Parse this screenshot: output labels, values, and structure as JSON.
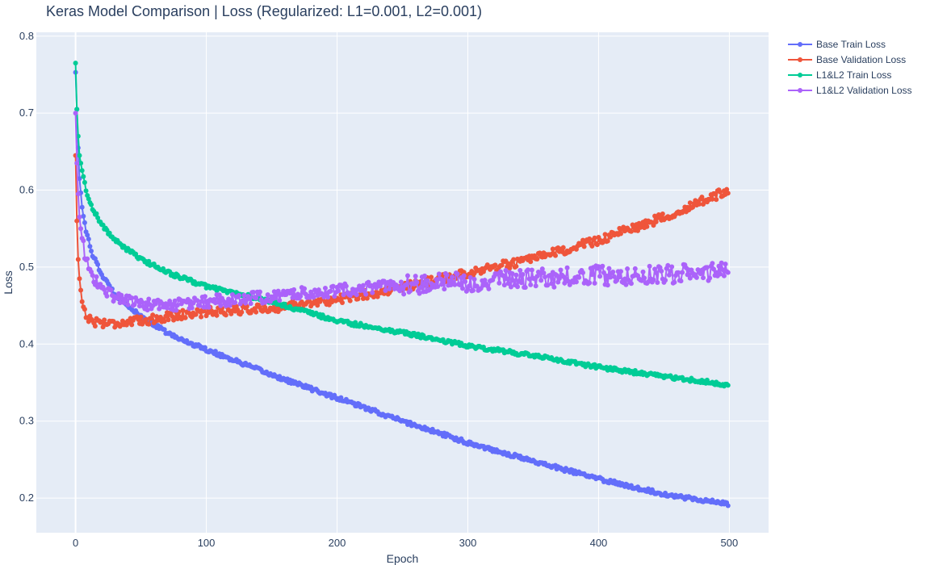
{
  "chart_data": {
    "type": "line",
    "title": "Keras Model Comparison |  Loss (Regularized: L1=0.001, L2=0.001)",
    "xlabel": "Epoch",
    "ylabel": "Loss",
    "xlim": [
      -30,
      530
    ],
    "ylim": [
      0.155,
      0.805
    ],
    "x_ticks": [
      0,
      100,
      200,
      300,
      400,
      500
    ],
    "y_ticks": [
      0.2,
      0.3,
      0.4,
      0.5,
      0.6,
      0.7,
      0.8
    ],
    "grid": true,
    "legend_position": "top-right",
    "colors": {
      "plot_bg": "#E5ECF6",
      "grid": "#ffffff",
      "text": "#2a3f5f"
    },
    "series": [
      {
        "name": "Base Train Loss",
        "color": "#636EFA",
        "keypoints": [
          [
            0,
            0.753
          ],
          [
            1,
            0.705
          ],
          [
            2,
            0.655
          ],
          [
            3,
            0.615
          ],
          [
            5,
            0.578
          ],
          [
            8,
            0.548
          ],
          [
            12,
            0.52
          ],
          [
            20,
            0.49
          ],
          [
            30,
            0.465
          ],
          [
            50,
            0.435
          ],
          [
            75,
            0.41
          ],
          [
            100,
            0.393
          ],
          [
            150,
            0.36
          ],
          [
            200,
            0.33
          ],
          [
            250,
            0.3
          ],
          [
            300,
            0.272
          ],
          [
            350,
            0.248
          ],
          [
            400,
            0.225
          ],
          [
            450,
            0.205
          ],
          [
            500,
            0.192
          ]
        ],
        "noise": 0.0025
      },
      {
        "name": "Base Validation Loss",
        "color": "#EF553B",
        "keypoints": [
          [
            0,
            0.645
          ],
          [
            1,
            0.56
          ],
          [
            2,
            0.51
          ],
          [
            3,
            0.485
          ],
          [
            5,
            0.455
          ],
          [
            8,
            0.438
          ],
          [
            12,
            0.43
          ],
          [
            20,
            0.428
          ],
          [
            30,
            0.427
          ],
          [
            50,
            0.43
          ],
          [
            75,
            0.437
          ],
          [
            100,
            0.442
          ],
          [
            150,
            0.447
          ],
          [
            200,
            0.458
          ],
          [
            250,
            0.473
          ],
          [
            300,
            0.493
          ],
          [
            350,
            0.51
          ],
          [
            400,
            0.535
          ],
          [
            450,
            0.565
          ],
          [
            500,
            0.6
          ]
        ],
        "noise": 0.006
      },
      {
        "name": "L1&L2 Train Loss",
        "color": "#00CC96",
        "keypoints": [
          [
            0,
            0.765
          ],
          [
            1,
            0.705
          ],
          [
            2,
            0.67
          ],
          [
            3,
            0.645
          ],
          [
            5,
            0.625
          ],
          [
            8,
            0.6
          ],
          [
            12,
            0.58
          ],
          [
            20,
            0.555
          ],
          [
            30,
            0.535
          ],
          [
            50,
            0.51
          ],
          [
            75,
            0.49
          ],
          [
            100,
            0.475
          ],
          [
            150,
            0.455
          ],
          [
            200,
            0.43
          ],
          [
            250,
            0.415
          ],
          [
            300,
            0.398
          ],
          [
            350,
            0.385
          ],
          [
            400,
            0.37
          ],
          [
            450,
            0.358
          ],
          [
            500,
            0.347
          ]
        ],
        "noise": 0.0025
      },
      {
        "name": "L1&L2 Validation Loss",
        "color": "#AB63FA",
        "keypoints": [
          [
            0,
            0.7
          ],
          [
            1,
            0.635
          ],
          [
            2,
            0.595
          ],
          [
            3,
            0.565
          ],
          [
            5,
            0.535
          ],
          [
            8,
            0.51
          ],
          [
            12,
            0.49
          ],
          [
            20,
            0.472
          ],
          [
            30,
            0.462
          ],
          [
            50,
            0.452
          ],
          [
            75,
            0.45
          ],
          [
            100,
            0.455
          ],
          [
            150,
            0.462
          ],
          [
            200,
            0.47
          ],
          [
            250,
            0.476
          ],
          [
            300,
            0.481
          ],
          [
            350,
            0.485
          ],
          [
            400,
            0.489
          ],
          [
            450,
            0.491
          ],
          [
            500,
            0.493
          ]
        ],
        "noise": 0.008
      }
    ]
  }
}
